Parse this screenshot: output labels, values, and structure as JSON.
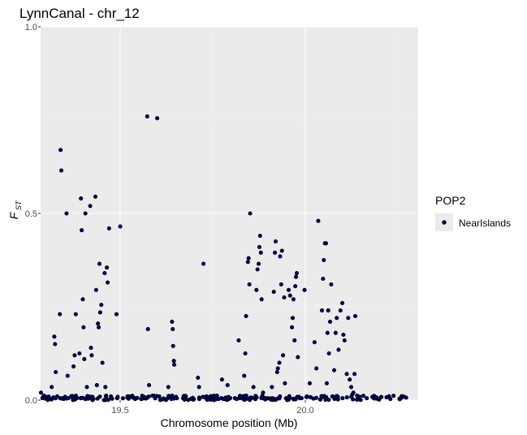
{
  "chart_data": {
    "type": "scatter",
    "title": "LynnCanal - chr_12",
    "xlabel": "Chromosome position (Mb)",
    "ylabel_main": "F",
    "ylabel_sub": "ST",
    "xlim": [
      19.285,
      20.305
    ],
    "ylim": [
      0,
      1
    ],
    "x_ticks": [
      "19.5",
      "20.0"
    ],
    "y_ticks": [
      "0.0",
      "0.5",
      "1.0"
    ],
    "grid": true,
    "legend": {
      "title": "POP2",
      "position": "right"
    },
    "series": [
      {
        "name": "NearIslands",
        "color": "#000066",
        "points": [
          [
            19.286,
            0.02
          ],
          [
            19.315,
            0.035
          ],
          [
            19.322,
            0.17
          ],
          [
            19.324,
            0.15
          ],
          [
            19.326,
            0.075
          ],
          [
            19.33,
            0.01
          ],
          [
            19.337,
            0.23
          ],
          [
            19.339,
            0.67
          ],
          [
            19.341,
            0.615
          ],
          [
            19.345,
            0.005
          ],
          [
            19.355,
            0.5
          ],
          [
            19.358,
            0.065
          ],
          [
            19.36,
            0.005
          ],
          [
            19.368,
            0.01
          ],
          [
            19.374,
            0.09
          ],
          [
            19.377,
            0.12
          ],
          [
            19.38,
            0.23
          ],
          [
            19.39,
            0.125
          ],
          [
            19.394,
            0.54
          ],
          [
            19.396,
            0.455
          ],
          [
            19.399,
            0.27
          ],
          [
            19.401,
            0.195
          ],
          [
            19.403,
            0.11
          ],
          [
            19.406,
            0.5
          ],
          [
            19.41,
            0.035
          ],
          [
            19.415,
            0.005
          ],
          [
            19.419,
            0.52
          ],
          [
            19.421,
            0.14
          ],
          [
            19.423,
            0.12
          ],
          [
            19.433,
            0.545
          ],
          [
            19.435,
            0.295
          ],
          [
            19.437,
            0.04
          ],
          [
            19.44,
            0.205
          ],
          [
            19.442,
            0.195
          ],
          [
            19.444,
            0.365
          ],
          [
            19.446,
            0.235
          ],
          [
            19.449,
            0.255
          ],
          [
            19.452,
            0.1
          ],
          [
            19.458,
            0.34
          ],
          [
            19.46,
            0.035
          ],
          [
            19.464,
            0.355
          ],
          [
            19.466,
            0.315
          ],
          [
            19.47,
            0.46
          ],
          [
            19.475,
            0.01
          ],
          [
            19.49,
            0.23
          ],
          [
            19.492,
            0.005
          ],
          [
            19.5,
            0.465
          ],
          [
            19.52,
            0.01
          ],
          [
            19.54,
            0.005
          ],
          [
            19.573,
            0.76
          ],
          [
            19.575,
            0.19
          ],
          [
            19.578,
            0.04
          ],
          [
            19.6,
            0.755
          ],
          [
            19.63,
            0.035
          ],
          [
            19.64,
            0.21
          ],
          [
            19.642,
            0.19
          ],
          [
            19.643,
            0.145
          ],
          [
            19.645,
            0.105
          ],
          [
            19.646,
            0.095
          ],
          [
            19.653,
            0.005
          ],
          [
            19.67,
            0.005
          ],
          [
            19.695,
            0.005
          ],
          [
            19.71,
            0.06
          ],
          [
            19.713,
            0.035
          ],
          [
            19.725,
            0.365
          ],
          [
            19.74,
            0.005
          ],
          [
            19.76,
            0.01
          ],
          [
            19.775,
            0.055
          ],
          [
            19.79,
            0.04
          ],
          [
            19.81,
            0.005
          ],
          [
            19.82,
            0.16
          ],
          [
            19.83,
            0.01
          ],
          [
            19.835,
            0.065
          ],
          [
            19.838,
            0.125
          ],
          [
            19.84,
            0.225
          ],
          [
            19.845,
            0.37
          ],
          [
            19.847,
            0.38
          ],
          [
            19.849,
            0.31
          ],
          [
            19.851,
            0.5
          ],
          [
            19.86,
            0.035
          ],
          [
            19.868,
            0.295
          ],
          [
            19.871,
            0.35
          ],
          [
            19.874,
            0.365
          ],
          [
            19.876,
            0.41
          ],
          [
            19.878,
            0.44
          ],
          [
            19.88,
            0.395
          ],
          [
            19.882,
            0.27
          ],
          [
            19.886,
            0.02
          ],
          [
            19.89,
            0.005
          ],
          [
            19.91,
            0.035
          ],
          [
            19.915,
            0.29
          ],
          [
            19.918,
            0.395
          ],
          [
            19.92,
            0.425
          ],
          [
            19.924,
            0.075
          ],
          [
            19.926,
            0.085
          ],
          [
            19.93,
            0.1
          ],
          [
            19.932,
            0.385
          ],
          [
            19.935,
            0.31
          ],
          [
            19.937,
            0.4
          ],
          [
            19.94,
            0.12
          ],
          [
            19.943,
            0.275
          ],
          [
            19.945,
            0.045
          ],
          [
            19.948,
            0.005
          ],
          [
            19.955,
            0.295
          ],
          [
            19.959,
            0.28
          ],
          [
            19.964,
            0.195
          ],
          [
            19.966,
            0.22
          ],
          [
            19.968,
            0.27
          ],
          [
            19.971,
            0.16
          ],
          [
            19.973,
            0.305
          ],
          [
            19.975,
            0.33
          ],
          [
            19.977,
            0.34
          ],
          [
            19.98,
            0.115
          ],
          [
            19.985,
            0.005
          ],
          [
            19.99,
            0.005
          ],
          [
            19.998,
            0.295
          ],
          [
            20.005,
            0.01
          ],
          [
            20.012,
            0.045
          ],
          [
            20.025,
            0.155
          ],
          [
            20.03,
            0.085
          ],
          [
            20.035,
            0.48
          ],
          [
            20.045,
            0.24
          ],
          [
            20.048,
            0.325
          ],
          [
            20.05,
            0.375
          ],
          [
            20.053,
            0.42
          ],
          [
            20.056,
            0.42
          ],
          [
            20.058,
            0.045
          ],
          [
            20.06,
            0.18
          ],
          [
            20.062,
            0.24
          ],
          [
            20.064,
            0.125
          ],
          [
            20.067,
            0.21
          ],
          [
            20.07,
            0.31
          ],
          [
            20.073,
            0.01
          ],
          [
            20.078,
            0.08
          ],
          [
            20.082,
            0.18
          ],
          [
            20.085,
            0.22
          ],
          [
            20.09,
            0.135
          ],
          [
            20.095,
            0.24
          ],
          [
            20.1,
            0.26
          ],
          [
            20.103,
            0.175
          ],
          [
            20.106,
            0.16
          ],
          [
            20.112,
            0.07
          ],
          [
            20.116,
            0.22
          ],
          [
            20.12,
            0.055
          ],
          [
            20.124,
            0.035
          ],
          [
            20.127,
            0.015
          ],
          [
            20.13,
            0.02
          ],
          [
            20.133,
            0.07
          ],
          [
            20.135,
            0.225
          ]
        ]
      }
    ]
  }
}
